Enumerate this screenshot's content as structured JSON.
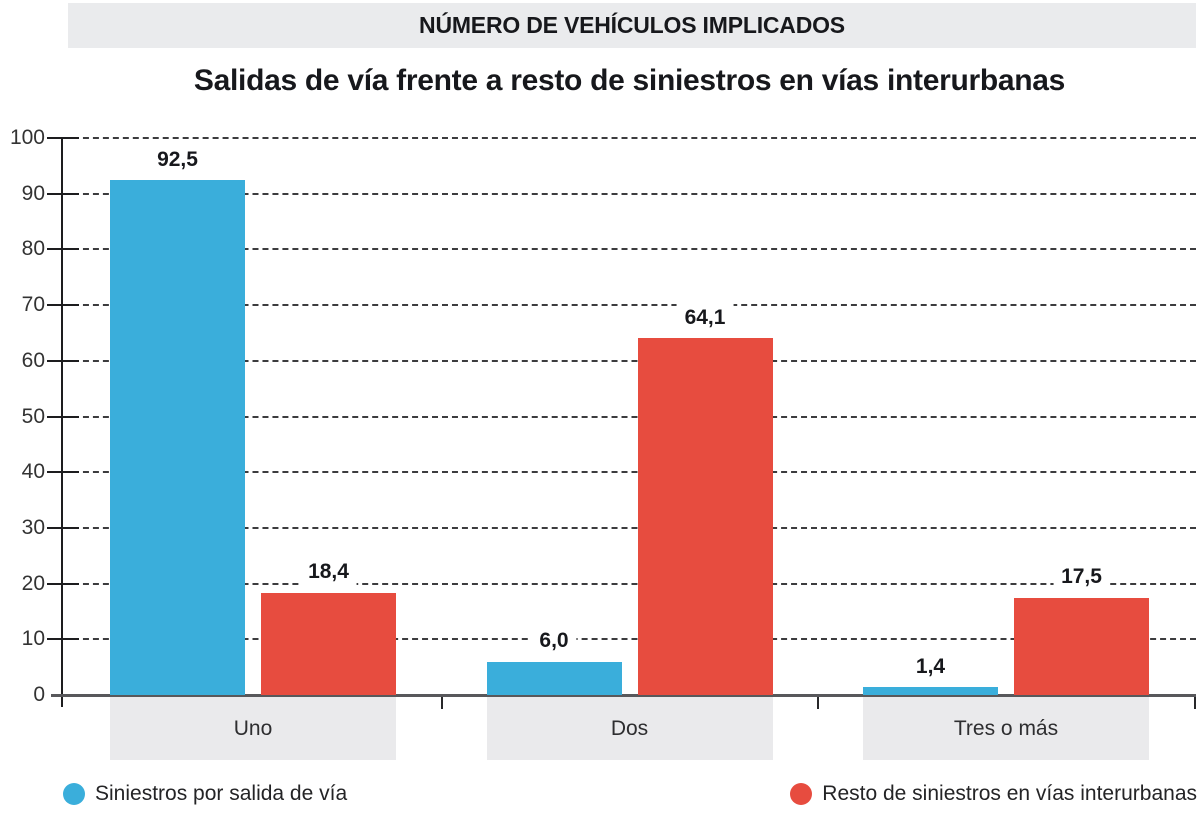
{
  "chart_data": {
    "type": "bar",
    "header_banner": "NÚMERO DE VEHÍCULOS IMPLICADOS",
    "title": "Salidas de vía frente a resto de siniestros en vías interurbanas",
    "categories": [
      "Uno",
      "Dos",
      "Tres o más"
    ],
    "series": [
      {
        "name": "Siniestros por salida de vía",
        "color": "#3AAEDB",
        "values": [
          92.5,
          6.0,
          1.4
        ],
        "value_labels": [
          "92,5",
          "6,0",
          "1,4"
        ]
      },
      {
        "name": "Resto de siniestros en vías interurbanas",
        "color": "#E74C3F",
        "values": [
          18.4,
          64.1,
          17.5
        ],
        "value_labels": [
          "18,4",
          "64,1",
          "17,5"
        ]
      }
    ],
    "y_axis": {
      "min": 0,
      "max": 100,
      "step": 10,
      "tick_labels": [
        "0",
        "10",
        "20",
        "30",
        "40",
        "50",
        "60",
        "70",
        "80",
        "90",
        "100"
      ]
    },
    "grid": {
      "horizontal": true,
      "style": "dashed"
    },
    "legend_position": "bottom",
    "decimal_separator": ","
  },
  "colors": {
    "series_blue": "#3AAEDB",
    "series_red": "#E74C3F",
    "category_band_gray": "#EAEAEC",
    "header_band_gray": "#EAEBED",
    "axis_dark": "#1D1D1F",
    "baseline_gray": "#58585B",
    "text_dark": "#17181C"
  }
}
